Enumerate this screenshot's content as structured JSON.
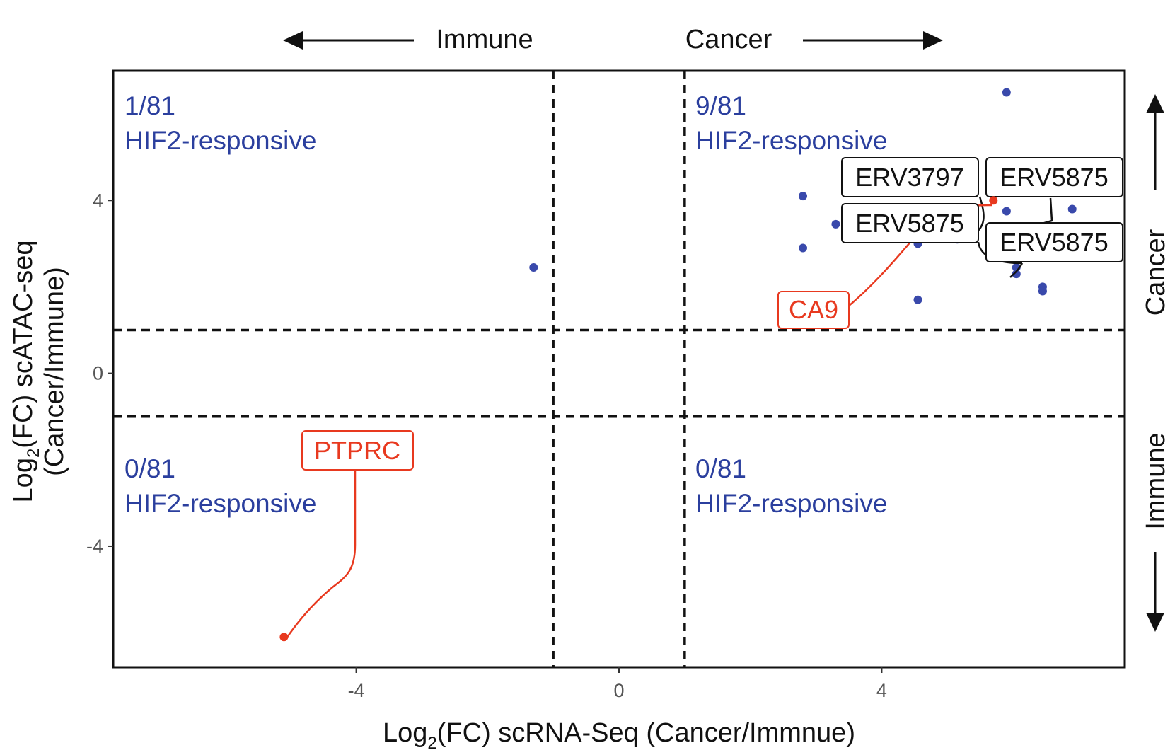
{
  "chart_data": {
    "type": "scatter",
    "title": "",
    "xlabel": "Log₂(FC) scRNA-Seq (Cancer/Immnue)",
    "xlabel_main": "Log",
    "xlabel_sub": "2",
    "xlabel_rest": "(FC) scRNA-Seq (Cancer/Immnue)",
    "ylabel_line1": "Log₂(FC) scATAC-seq",
    "ylabel_line1_main": "Log",
    "ylabel_line1_sub": "2",
    "ylabel_line1_rest": "(FC) scATAC-seq",
    "ylabel_line2": "(Cancer/Immune)",
    "xlim": [
      -7.7,
      7.7
    ],
    "ylim": [
      -6.8,
      7.0
    ],
    "x_ticks": [
      -4,
      0,
      4
    ],
    "y_ticks": [
      -4,
      0,
      4
    ],
    "x_tick_labels": [
      "-4",
      "0",
      "4"
    ],
    "y_tick_labels": [
      "-4",
      "0",
      "4"
    ],
    "thresholds": {
      "x": [
        -1,
        1
      ],
      "y": [
        -1,
        1
      ]
    },
    "grid": false,
    "direction_labels": {
      "top_left": "Immune",
      "top_right": "Cancer",
      "right_top": "Cancer",
      "right_bottom": "Immune"
    },
    "quadrant_labels": [
      {
        "count": "1/81",
        "text": "HIF2-responsive",
        "quadrant": "top-left"
      },
      {
        "count": "9/81",
        "text": "HIF2-responsive",
        "quadrant": "top-right"
      },
      {
        "count": "0/81",
        "text": "HIF2-responsive",
        "quadrant": "bottom-left"
      },
      {
        "count": "0/81",
        "text": "HIF2-responsive",
        "quadrant": "bottom-right"
      }
    ],
    "point_color": "#3949ab",
    "highlight_color": "#e8391f",
    "points": [
      {
        "x": -1.3,
        "y": 2.45
      },
      {
        "x": 2.8,
        "y": 4.1
      },
      {
        "x": 2.8,
        "y": 2.9
      },
      {
        "x": 3.3,
        "y": 3.45
      },
      {
        "x": 4.55,
        "y": 3.0
      },
      {
        "x": 4.55,
        "y": 1.7
      },
      {
        "x": 5.15,
        "y": 3.1
      },
      {
        "x": 5.9,
        "y": 6.5
      },
      {
        "x": 5.9,
        "y": 3.75
      },
      {
        "x": 6.05,
        "y": 2.6
      },
      {
        "x": 6.05,
        "y": 2.45
      },
      {
        "x": 6.05,
        "y": 2.3
      },
      {
        "x": 6.45,
        "y": 2.0
      },
      {
        "x": 6.45,
        "y": 1.9
      },
      {
        "x": 6.9,
        "y": 3.8
      }
    ],
    "highlighted_points": [
      {
        "label": "CA9",
        "x": 5.7,
        "y": 4.0
      },
      {
        "label": "PTPRC",
        "x": -5.1,
        "y": -6.1
      }
    ],
    "annotations": [
      {
        "text": "ERV3797"
      },
      {
        "text": "ERV5875"
      },
      {
        "text": "ERV5875"
      },
      {
        "text": "ERV5875"
      },
      {
        "text": "CA9"
      },
      {
        "text": "PTPRC"
      }
    ]
  }
}
